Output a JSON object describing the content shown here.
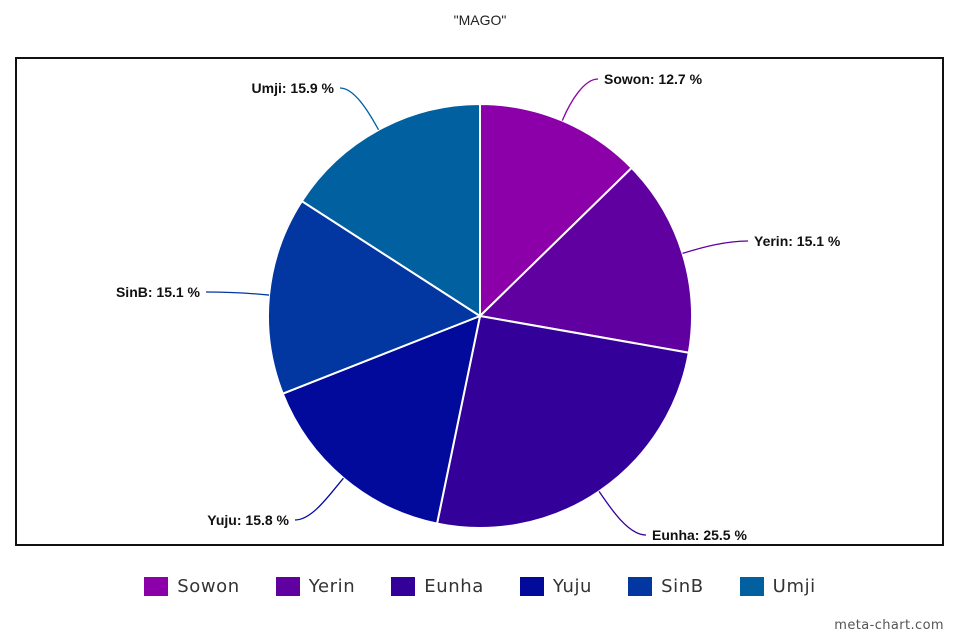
{
  "chart_data": {
    "type": "pie",
    "title": "\"MAGO\"",
    "slices": [
      {
        "name": "Sowon",
        "value": 12.7,
        "label": "Sowon: 12.7 %",
        "color": "#8b00a8"
      },
      {
        "name": "Yerin",
        "value": 15.1,
        "label": "Yerin: 15.1 %",
        "color": "#6000a0"
      },
      {
        "name": "Eunha",
        "value": 25.5,
        "label": "Eunha: 25.5 %",
        "color": "#33009a"
      },
      {
        "name": "Yuju",
        "value": 15.8,
        "label": "Yuju: 15.8 %",
        "color": "#010a9b"
      },
      {
        "name": "SinB",
        "value": 15.1,
        "label": "SinB: 15.1 %",
        "color": "#0236a0"
      },
      {
        "name": "Umji",
        "value": 15.9,
        "label": "Umji: 15.9 %",
        "color": "#0060a0"
      }
    ],
    "legend_position": "bottom"
  },
  "watermark": "meta-chart.com"
}
